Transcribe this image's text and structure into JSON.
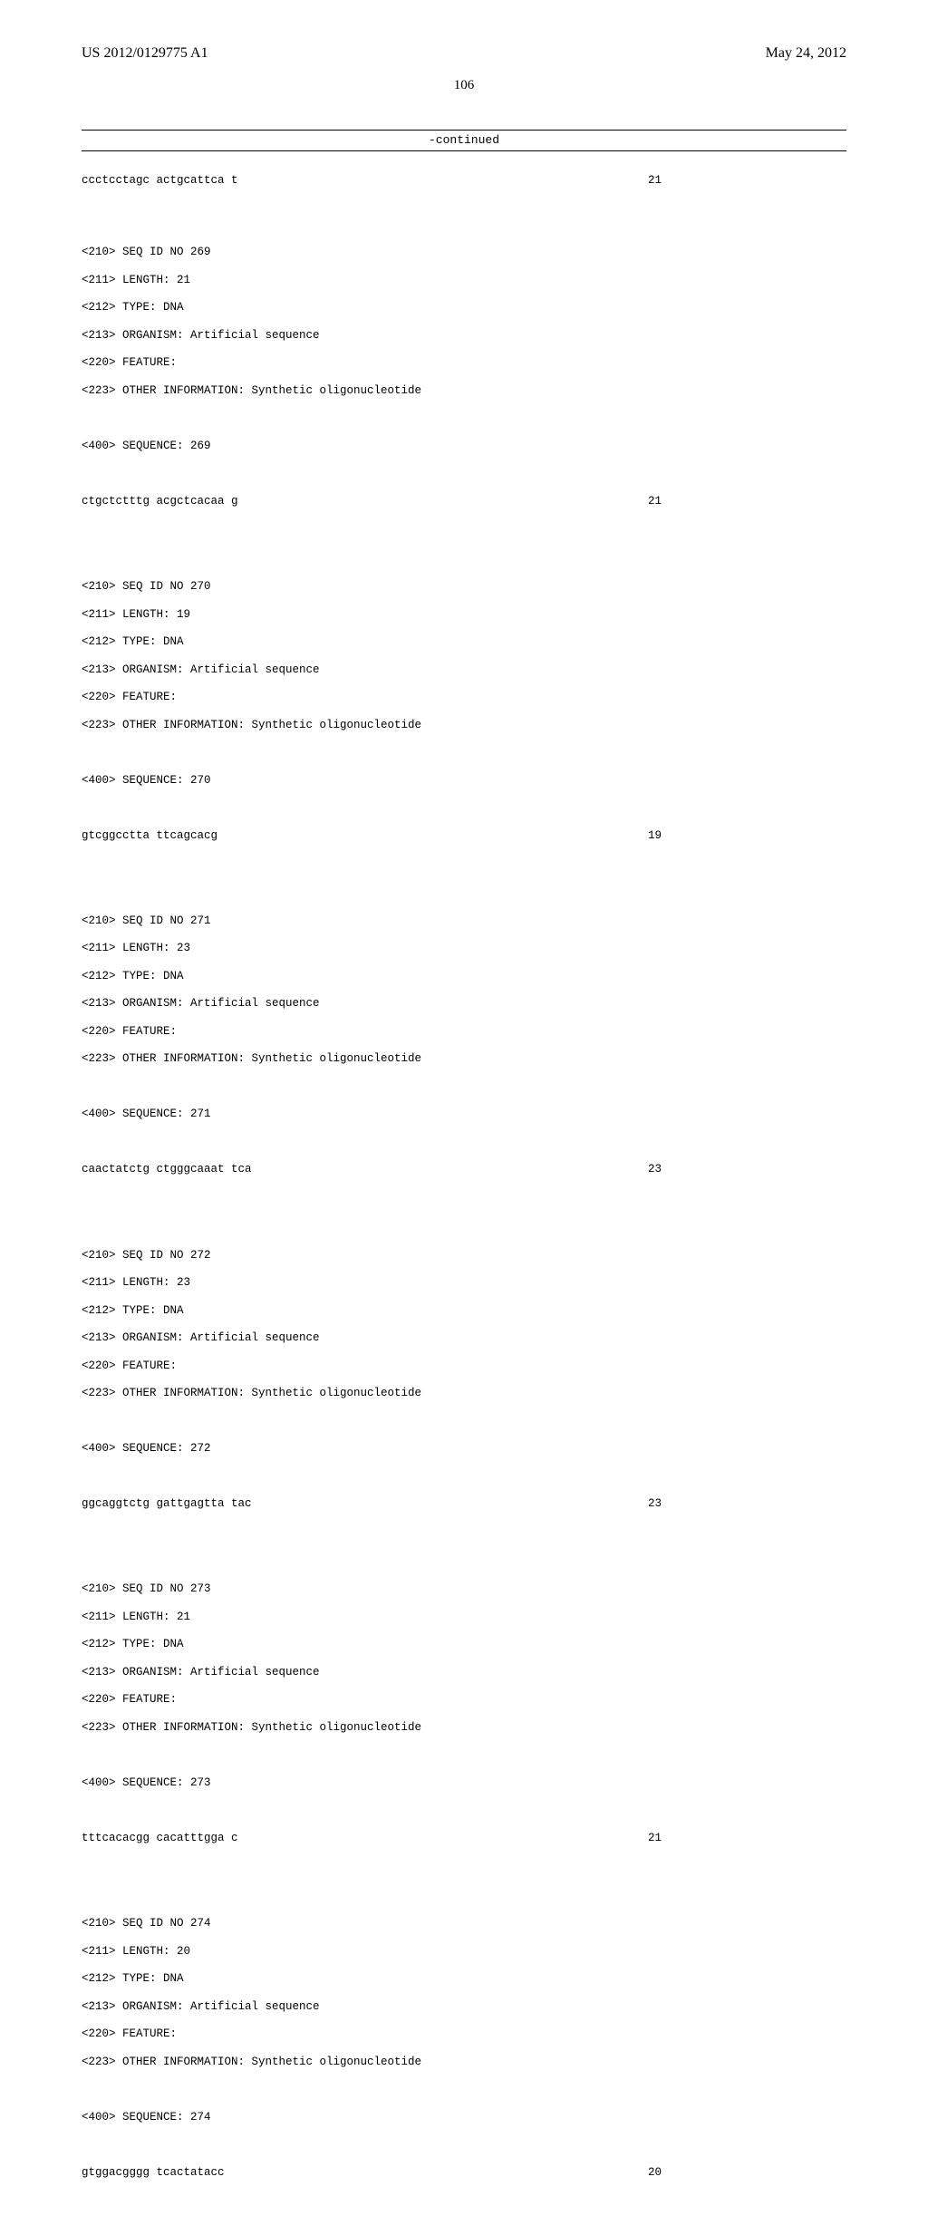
{
  "header": {
    "left": "US 2012/0129775 A1",
    "right": "May 24, 2012"
  },
  "page_number": "106",
  "continued_label": "-continued",
  "orphan": {
    "sequence": "ccctcctagc actgcattca t",
    "length": "21"
  },
  "entries": [
    {
      "id_line": "<210> SEQ ID NO 269",
      "length_line": "<211> LENGTH: 21",
      "type_line": "<212> TYPE: DNA",
      "organism_line": "<213> ORGANISM: Artificial sequence",
      "feature_line": "<220> FEATURE:",
      "other_line": "<223> OTHER INFORMATION: Synthetic oligonucleotide",
      "sequence_header": "<400> SEQUENCE: 269",
      "sequence": "ctgctctttg acgctcacaa g",
      "length": "21"
    },
    {
      "id_line": "<210> SEQ ID NO 270",
      "length_line": "<211> LENGTH: 19",
      "type_line": "<212> TYPE: DNA",
      "organism_line": "<213> ORGANISM: Artificial sequence",
      "feature_line": "<220> FEATURE:",
      "other_line": "<223> OTHER INFORMATION: Synthetic oligonucleotide",
      "sequence_header": "<400> SEQUENCE: 270",
      "sequence": "gtcggcctta ttcagcacg",
      "length": "19"
    },
    {
      "id_line": "<210> SEQ ID NO 271",
      "length_line": "<211> LENGTH: 23",
      "type_line": "<212> TYPE: DNA",
      "organism_line": "<213> ORGANISM: Artificial sequence",
      "feature_line": "<220> FEATURE:",
      "other_line": "<223> OTHER INFORMATION: Synthetic oligonucleotide",
      "sequence_header": "<400> SEQUENCE: 271",
      "sequence": "caactatctg ctgggcaaat tca",
      "length": "23"
    },
    {
      "id_line": "<210> SEQ ID NO 272",
      "length_line": "<211> LENGTH: 23",
      "type_line": "<212> TYPE: DNA",
      "organism_line": "<213> ORGANISM: Artificial sequence",
      "feature_line": "<220> FEATURE:",
      "other_line": "<223> OTHER INFORMATION: Synthetic oligonucleotide",
      "sequence_header": "<400> SEQUENCE: 272",
      "sequence": "ggcaggtctg gattgagtta tac",
      "length": "23"
    },
    {
      "id_line": "<210> SEQ ID NO 273",
      "length_line": "<211> LENGTH: 21",
      "type_line": "<212> TYPE: DNA",
      "organism_line": "<213> ORGANISM: Artificial sequence",
      "feature_line": "<220> FEATURE:",
      "other_line": "<223> OTHER INFORMATION: Synthetic oligonucleotide",
      "sequence_header": "<400> SEQUENCE: 273",
      "sequence": "tttcacacgg cacatttgga c",
      "length": "21"
    },
    {
      "id_line": "<210> SEQ ID NO 274",
      "length_line": "<211> LENGTH: 20",
      "type_line": "<212> TYPE: DNA",
      "organism_line": "<213> ORGANISM: Artificial sequence",
      "feature_line": "<220> FEATURE:",
      "other_line": "<223> OTHER INFORMATION: Synthetic oligonucleotide",
      "sequence_header": "<400> SEQUENCE: 274",
      "sequence": "gtggacgggg tcactatacc",
      "length": "20"
    }
  ]
}
